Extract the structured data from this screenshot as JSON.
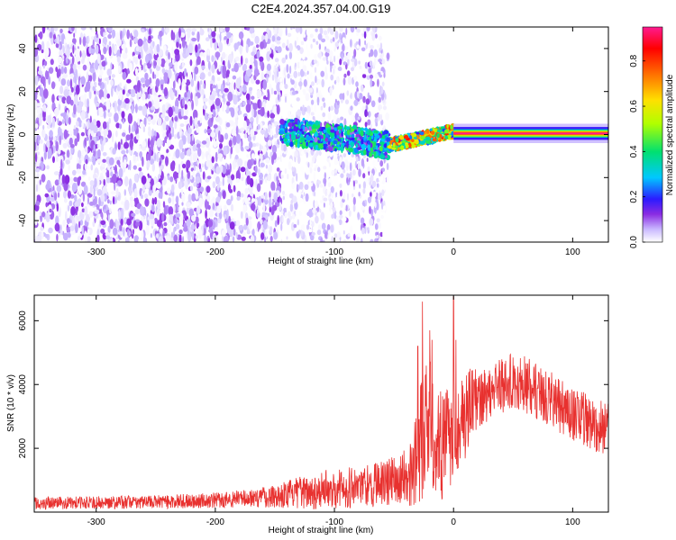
{
  "title": "C2E4.2024.357.04.00.G19",
  "chart_data": [
    {
      "type": "heatmap",
      "xlabel": "Height of straight line (km)",
      "ylabel": "Frequency (Hz)",
      "xlim": [
        -352,
        130
      ],
      "ylim": [
        -50,
        50
      ],
      "x_ticks": [
        -300,
        -200,
        -100,
        0,
        100
      ],
      "y_ticks": [
        -40,
        -20,
        0,
        20,
        40
      ],
      "colorbar": {
        "label": "Normalized spectral amplitude",
        "range": [
          0,
          0.95
        ],
        "ticks": [
          0.0,
          0.2,
          0.4,
          0.6,
          0.8
        ],
        "colors": [
          "#ffffff",
          "#c9b8ff",
          "#8a2be2",
          "#2b1bff",
          "#00c8ff",
          "#00e070",
          "#b0ff00",
          "#ffe000",
          "#ff7000",
          "#ff0000",
          "#ff1a90"
        ]
      },
      "features": [
        {
          "name": "noise",
          "x_range": [
            -352,
            -145
          ],
          "freq_range": [
            -50,
            50
          ],
          "amplitude": 0.08
        },
        {
          "name": "sparse noise",
          "x_range": [
            -145,
            -55
          ],
          "freq_range": [
            -50,
            50
          ],
          "amplitude": 0.03
        },
        {
          "name": "signal",
          "x_range": [
            -145,
            -55
          ],
          "freq_center": 0,
          "freq_halfwidth": 6,
          "amplitude": 0.3
        },
        {
          "name": "signal",
          "x_range": [
            -55,
            0
          ],
          "freq_center": 0,
          "freq_halfwidth": 3,
          "amplitude": 0.6
        },
        {
          "name": "carrier line",
          "x_range": [
            0,
            130
          ],
          "freq_center": 0.5,
          "freq_halfwidth": 1.5,
          "amplitude": 0.95
        }
      ]
    },
    {
      "type": "line",
      "xlabel": "Height of straight line (km)",
      "ylabel": "SNR (10 * v/v)",
      "xlim": [
        -352,
        130
      ],
      "ylim": [
        0,
        6800
      ],
      "x_ticks": [
        -300,
        -200,
        -100,
        0,
        100
      ],
      "y_ticks": [
        2000,
        4000,
        6000
      ],
      "color": "#e8312f",
      "envelope": {
        "x": [
          -352,
          -300,
          -250,
          -200,
          -160,
          -140,
          -120,
          -100,
          -80,
          -60,
          -45,
          -35,
          -28,
          -20,
          -15,
          -10,
          -5,
          0,
          10,
          20,
          30,
          40,
          50,
          60,
          70,
          80,
          90,
          100,
          110,
          120,
          130
        ],
        "mean": [
          280,
          300,
          320,
          370,
          470,
          560,
          640,
          760,
          800,
          900,
          1050,
          1200,
          2200,
          3000,
          2300,
          2000,
          2300,
          2700,
          3100,
          3500,
          3800,
          4000,
          4100,
          4000,
          3800,
          3600,
          3300,
          3100,
          2900,
          2700,
          2600
        ],
        "spread": [
          200,
          200,
          210,
          240,
          330,
          430,
          560,
          640,
          680,
          720,
          800,
          1100,
          1900,
          2200,
          1900,
          1700,
          1700,
          1800,
          1400,
          1000,
          900,
          900,
          900,
          900,
          900,
          850,
          850,
          850,
          850,
          850,
          850
        ]
      },
      "spikes": [
        {
          "x": -30,
          "value": 5200
        },
        {
          "x": -26,
          "value": 6600
        },
        {
          "x": -20,
          "value": 5700
        },
        {
          "x": -18,
          "value": 5400
        },
        {
          "x": 0,
          "value": 6750
        },
        {
          "x": 2,
          "value": 5400
        }
      ]
    }
  ]
}
